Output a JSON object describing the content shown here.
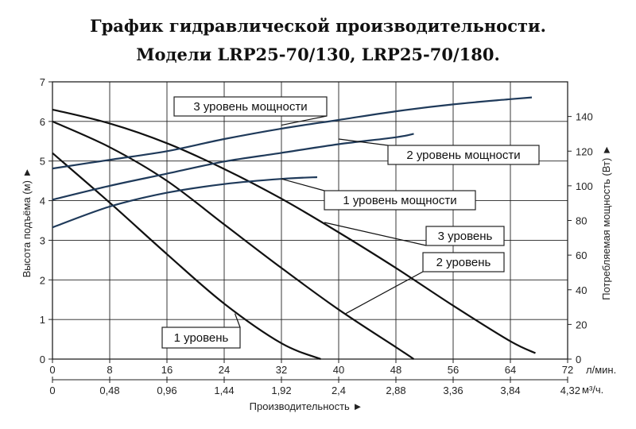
{
  "titles": {
    "line1": "График гидравлической производительности.",
    "line2": "Модели LRP25-70/130, LRP25-70/180."
  },
  "chart_data": {
    "type": "line",
    "title": "График гидравлической производительности. Модели LRP25-70/130, LRP25-70/180.",
    "xlabel": "Производительность ►",
    "ylabel_left": "Высота подъёма (м) ►",
    "ylabel_right": "Потребляемая мощность (Вт) ►",
    "x_unit_lpm": "л/мин.",
    "x_unit_m3h": "м³/ч.",
    "xlim": [
      0,
      72
    ],
    "ylim_left": [
      0,
      7
    ],
    "ylim_right": [
      0,
      160
    ],
    "x_ticks": [
      "0",
      "8",
      "16",
      "24",
      "32",
      "40",
      "48",
      "56",
      "64",
      "72"
    ],
    "x_ticks_m3h": [
      "0",
      "0,48",
      "0,96",
      "1,44",
      "1,92",
      "2,4",
      "2,88",
      "3,36",
      "3,84",
      "4,32"
    ],
    "y_ticks_left": [
      "0",
      "1",
      "2",
      "3",
      "4",
      "5",
      "6",
      "7"
    ],
    "y_ticks_right": [
      "0",
      "20",
      "40",
      "60",
      "80",
      "100",
      "120",
      "140"
    ],
    "grid": true,
    "head_series": [
      {
        "name": "1 уровень",
        "x": [
          0,
          8,
          16,
          24,
          32,
          37.5
        ],
        "y": [
          5.2,
          3.95,
          2.65,
          1.4,
          0.4,
          0
        ]
      },
      {
        "name": "2 уровень",
        "x": [
          0,
          8,
          16,
          24,
          32,
          40,
          48,
          50.5
        ],
        "y": [
          6.0,
          5.35,
          4.5,
          3.4,
          2.3,
          1.25,
          0.3,
          0
        ]
      },
      {
        "name": "3 уровень",
        "x": [
          0,
          8,
          16,
          24,
          32,
          40,
          48,
          56,
          64,
          67.5
        ],
        "y": [
          6.3,
          5.95,
          5.45,
          4.8,
          4.05,
          3.2,
          2.3,
          1.35,
          0.45,
          0.15
        ]
      }
    ],
    "power_series": [
      {
        "name": "1 уровень мощности",
        "x": [
          0,
          8,
          16,
          24,
          32,
          37
        ],
        "y": [
          76,
          88,
          96,
          101,
          104,
          105
        ]
      },
      {
        "name": "2 уровень мощности",
        "x": [
          0,
          8,
          16,
          24,
          32,
          40,
          48,
          50.5
        ],
        "y": [
          92,
          100,
          107,
          114,
          119,
          124,
          128,
          130
        ]
      },
      {
        "name": "3 уровень мощности",
        "x": [
          0,
          8,
          16,
          24,
          32,
          40,
          48,
          56,
          64,
          67
        ],
        "y": [
          110,
          115,
          120,
          127,
          133,
          138,
          143,
          147,
          150,
          151
        ]
      }
    ],
    "labels": {
      "head": [
        "1 уровень",
        "2 уровень",
        "3 уровень"
      ],
      "power": [
        "1 уровень мощности",
        "2 уровень мощности",
        "3 уровень мощности"
      ]
    },
    "colors": {
      "head": "#111111",
      "power": "#1f3a5a",
      "grid": "#222222"
    }
  }
}
